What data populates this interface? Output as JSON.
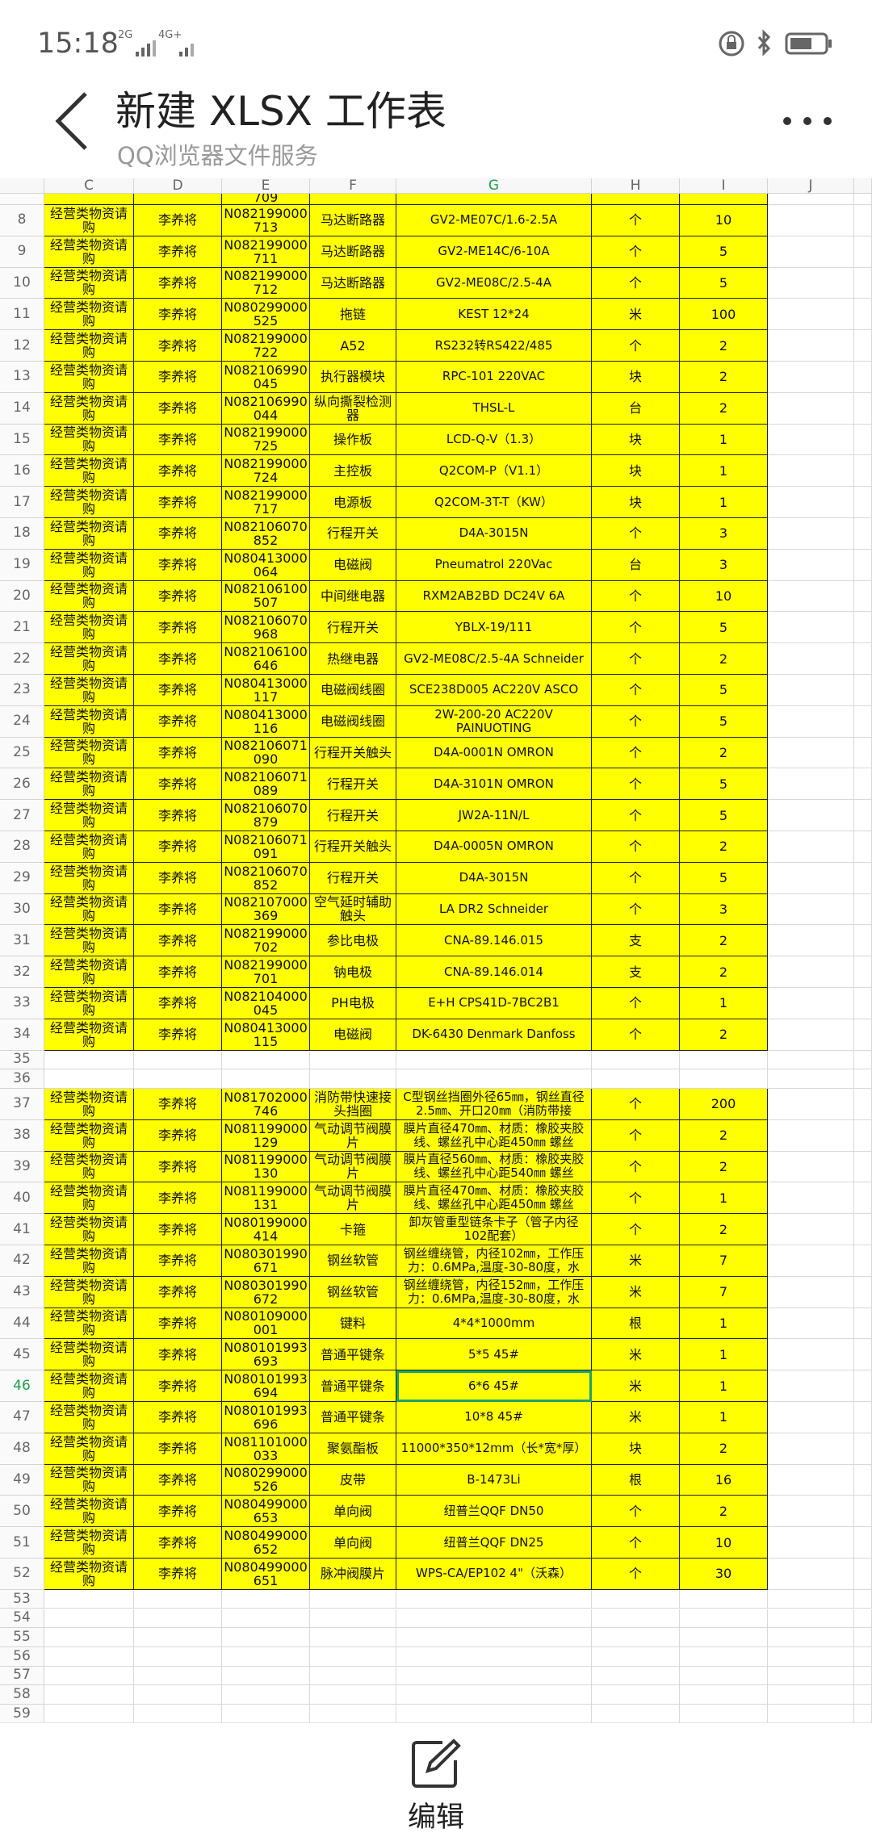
{
  "status": {
    "time": "15:18",
    "net1": "2G",
    "net2": "4G+"
  },
  "header": {
    "title": "新建 XLSX 工作表",
    "subtitle": "QQ浏览器文件服务"
  },
  "sheet": {
    "columns": [
      "C",
      "D",
      "E",
      "F",
      "G",
      "H",
      "I",
      "J"
    ],
    "partial_row": {
      "e": "709"
    },
    "selected": {
      "row": 46,
      "column": "G"
    },
    "rows": [
      [
        8,
        "经营类物资请购",
        "李养将",
        "N082199000\n713",
        "马达断路器",
        "GV2-ME07C/1.6-2.5A",
        "个",
        10
      ],
      [
        9,
        "经营类物资请购",
        "李养将",
        "N082199000\n711",
        "马达断路器",
        "GV2-ME14C/6-10A",
        "个",
        5
      ],
      [
        10,
        "经营类物资请购",
        "李养将",
        "N082199000\n712",
        "马达断路器",
        "GV2-ME08C/2.5-4A",
        "个",
        5
      ],
      [
        11,
        "经营类物资请购",
        "李养将",
        "N080299000\n525",
        "拖链",
        "KEST 12*24",
        "米",
        100
      ],
      [
        12,
        "经营类物资请购",
        "李养将",
        "N082199000\n722",
        "A52",
        "RS232转RS422/485",
        "个",
        2
      ],
      [
        13,
        "经营类物资请购",
        "李养将",
        "N082106990\n045",
        "执行器模块",
        "RPC-101 220VAC",
        "块",
        2
      ],
      [
        14,
        "经营类物资请购",
        "李养将",
        "N082106990\n044",
        "纵向撕裂检测器",
        "THSL-L",
        "台",
        2
      ],
      [
        15,
        "经营类物资请购",
        "李养将",
        "N082199000\n725",
        "操作板",
        "LCD-Q-V（1.3）",
        "块",
        1
      ],
      [
        16,
        "经营类物资请购",
        "李养将",
        "N082199000\n724",
        "主控板",
        "Q2COM-P（V1.1）",
        "块",
        1
      ],
      [
        17,
        "经营类物资请购",
        "李养将",
        "N082199000\n717",
        "电源板",
        "Q2COM-3T-T（KW）",
        "块",
        1
      ],
      [
        18,
        "经营类物资请购",
        "李养将",
        "N082106070\n852",
        "行程开关",
        "D4A-3015N",
        "个",
        3
      ],
      [
        19,
        "经营类物资请购",
        "李养将",
        "N080413000\n064",
        "电磁阀",
        "Pneumatrol  220Vac",
        "台",
        3
      ],
      [
        20,
        "经营类物资请购",
        "李养将",
        "N082106100\n507",
        "中间继电器",
        "RXM2AB2BD DC24V  6A",
        "个",
        10
      ],
      [
        21,
        "经营类物资请购",
        "李养将",
        "N082106070\n968",
        "行程开关",
        "YBLX-19/111",
        "个",
        5
      ],
      [
        22,
        "经营类物资请购",
        "李养将",
        "N082106100\n646",
        "热继电器",
        "GV2-ME08C/2.5-4A  Schneider",
        "个",
        2
      ],
      [
        23,
        "经营类物资请购",
        "李养将",
        "N080413000\n117",
        "电磁阀线圈",
        "SCE238D005 AC220V ASCO",
        "个",
        5
      ],
      [
        24,
        "经营类物资请购",
        "李养将",
        "N080413000\n116",
        "电磁阀线圈",
        "2W-200-20 AC220V PAINUOTING",
        "个",
        5
      ],
      [
        25,
        "经营类物资请购",
        "李养将",
        "N082106071\n090",
        "行程开关触头",
        "D4A-0001N  OMRON",
        "个",
        2
      ],
      [
        26,
        "经营类物资请购",
        "李养将",
        "N082106071\n089",
        "行程开关",
        "D4A-3101N  OMRON",
        "个",
        5
      ],
      [
        27,
        "经营类物资请购",
        "李养将",
        "N082106070\n879",
        "行程开关",
        "JW2A-11N/L",
        "个",
        5
      ],
      [
        28,
        "经营类物资请购",
        "李养将",
        "N082106071\n091",
        "行程开关触头",
        "D4A-0005N  OMRON",
        "个",
        2
      ],
      [
        29,
        "经营类物资请购",
        "李养将",
        "N082106070\n852",
        "行程开关",
        "D4A-3015N",
        "个",
        5
      ],
      [
        30,
        "经营类物资请购",
        "李养将",
        "N082107000\n369",
        "空气延时辅助触头",
        "LA DR2  Schneider",
        "个",
        3
      ],
      [
        31,
        "经营类物资请购",
        "李养将",
        "N082199000\n702",
        "参比电极",
        "CNA-89.146.015",
        "支",
        2
      ],
      [
        32,
        "经营类物资请购",
        "李养将",
        "N082199000\n701",
        "钠电极",
        "CNA-89.146.014",
        "支",
        2
      ],
      [
        33,
        "经营类物资请购",
        "李养将",
        "N082104000\n045",
        "PH电极",
        "E+H  CPS41D-7BC2B1",
        "个",
        1
      ],
      [
        34,
        "经营类物资请购",
        "李养将",
        "N080413000\n115",
        "电磁阀",
        "DK-6430 Denmark  Danfoss",
        "个",
        2
      ],
      [
        35
      ],
      [
        36
      ],
      [
        37,
        "经营类物资请购",
        "李养将",
        "N081702000\n746",
        "消防带快速接头挡圈",
        "C型钢丝挡圈外径65㎜，钢丝直径2.5㎜、开口20㎜（消防带接",
        "个",
        200
      ],
      [
        38,
        "经营类物资请购",
        "李养将",
        "N081199000\n129",
        "气动调节阀膜片",
        "膜片直径470㎜、材质：橡胶夹胶线、螺丝孔中心距450㎜  螺丝",
        "个",
        2
      ],
      [
        39,
        "经营类物资请购",
        "李养将",
        "N081199000\n130",
        "气动调节阀膜片",
        "膜片直径560㎜、材质：橡胶夹胶线、螺丝孔中心距540㎜  螺丝",
        "个",
        2
      ],
      [
        40,
        "经营类物资请购",
        "李养将",
        "N081199000\n131",
        "气动调节阀膜片",
        "膜片直径470㎜、材质：橡胶夹胶线、螺丝孔中心距450㎜  螺丝",
        "个",
        1
      ],
      [
        41,
        "经营类物资请购",
        "李养将",
        "N080199000\n414",
        "卡箍",
        "卸灰管重型链条卡子（管子内径102配套）",
        "个",
        2
      ],
      [
        42,
        "经营类物资请购",
        "李养将",
        "N080301990\n671",
        "钢丝软管",
        "钢丝缠绕管，内径102㎜，工作压力：0.6MPa,温度-30-80度，水",
        "米",
        7
      ],
      [
        43,
        "经营类物资请购",
        "李养将",
        "N080301990\n672",
        "钢丝软管",
        "钢丝缠绕管，内径152㎜，工作压力：0.6MPa,温度-30-80度，水",
        "米",
        7
      ],
      [
        44,
        "经营类物资请购",
        "李养将",
        "N080109000\n001",
        "键料",
        "4*4*1000mm",
        "根",
        1
      ],
      [
        45,
        "经营类物资请购",
        "李养将",
        "N080101993\n693",
        "普通平键条",
        "5*5 45#",
        "米",
        1
      ],
      [
        46,
        "经营类物资请购",
        "李养将",
        "N080101993\n694",
        "普通平键条",
        "6*6 45#",
        "米",
        1
      ],
      [
        47,
        "经营类物资请购",
        "李养将",
        "N080101993\n696",
        "普通平键条",
        "10*8 45#",
        "米",
        1
      ],
      [
        48,
        "经营类物资请购",
        "李养将",
        "N081101000\n033",
        "聚氨酯板",
        "11000*350*12mm（长*宽*厚）",
        "块",
        2
      ],
      [
        49,
        "经营类物资请购",
        "李养将",
        "N080299000\n526",
        "皮带",
        "B-1473Li",
        "根",
        16
      ],
      [
        50,
        "经营类物资请购",
        "李养将",
        "N080499000\n653",
        "单向阀",
        "纽普兰QQF DN50",
        "个",
        2
      ],
      [
        51,
        "经营类物资请购",
        "李养将",
        "N080499000\n652",
        "单向阀",
        "纽普兰QQF DN25",
        "个",
        10
      ],
      [
        52,
        "经营类物资请购",
        "李养将",
        "N080499000\n651",
        "脉冲阀膜片",
        "WPS-CA/EP102  4\"（沃森）",
        "个",
        30
      ],
      [
        53
      ],
      [
        54
      ],
      [
        55
      ],
      [
        56
      ],
      [
        57
      ],
      [
        58
      ],
      [
        59
      ]
    ]
  },
  "footer": {
    "edit": "编辑"
  }
}
